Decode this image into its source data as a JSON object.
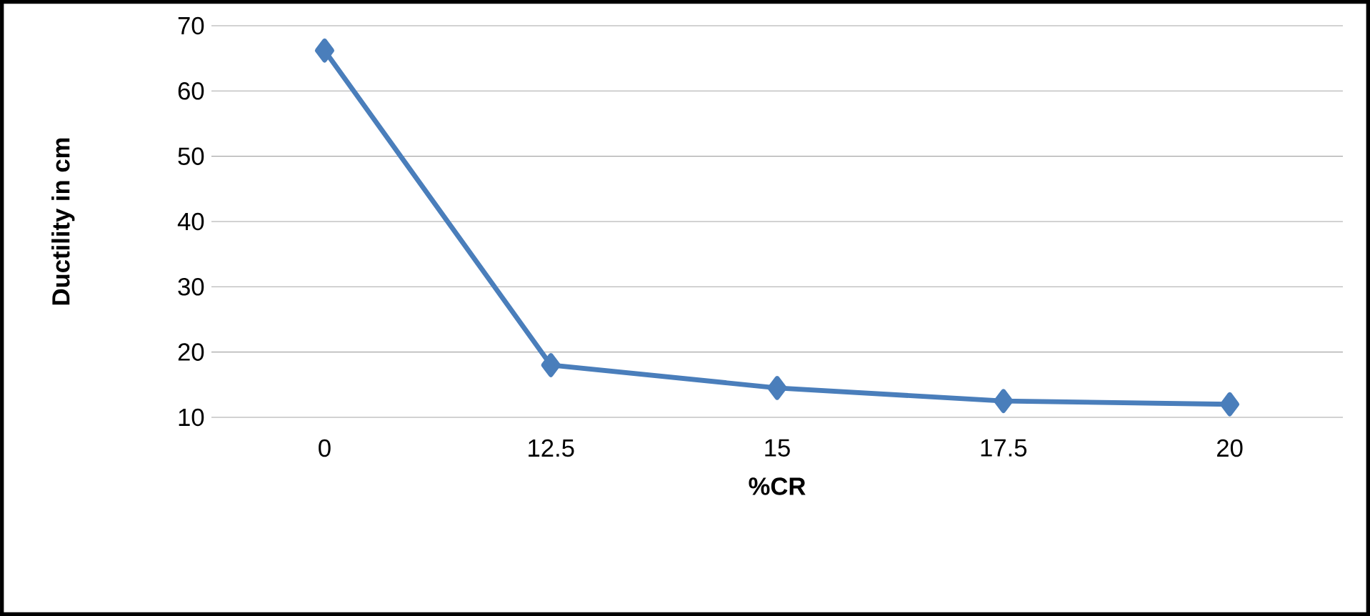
{
  "chart_data": {
    "type": "line",
    "xlabel": "%CR",
    "ylabel": "Ductility in cm",
    "categories": [
      "0",
      "12.5",
      "15",
      "17.5",
      "20"
    ],
    "series": [
      {
        "color": "#4a7ebb",
        "values": [
          66.2,
          18,
          14.5,
          12.5,
          12
        ]
      }
    ],
    "ylim": [
      10,
      70
    ],
    "yticks": [
      10,
      20,
      30,
      40,
      50,
      60,
      70
    ],
    "grid": "y",
    "marker": "diamond",
    "line_style": "solid"
  }
}
